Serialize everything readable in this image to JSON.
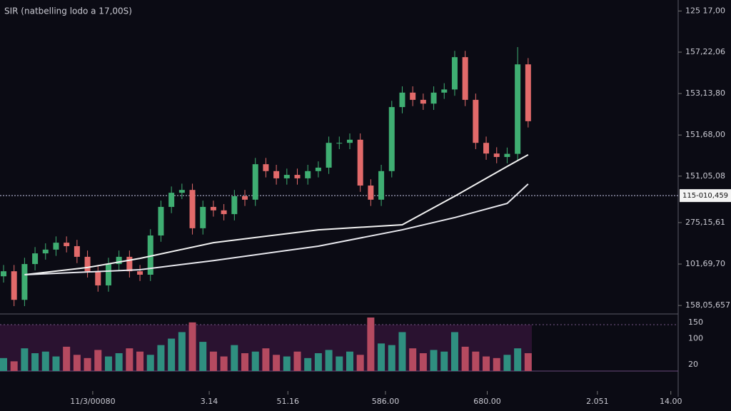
{
  "chart_data": [
    {
      "type": "candlestick",
      "title": "SIR (natbelling lodo a 17,00S)",
      "up_color": "#3fae72",
      "down_color": "#e26a6a",
      "x": [
        0,
        1,
        2,
        3,
        4,
        5,
        6,
        7,
        8,
        9,
        10,
        11,
        12,
        13,
        14,
        15,
        16,
        17,
        18,
        19,
        20,
        21,
        22,
        23,
        24,
        25,
        26,
        27,
        28,
        29,
        30,
        31,
        32,
        33,
        34,
        35,
        36,
        37,
        38,
        39,
        40,
        41,
        42,
        43,
        44,
        45,
        46,
        47,
        48,
        49,
        50
      ],
      "open": [
        12,
        13.6,
        4.5,
        15.9,
        19.3,
        20.5,
        22.7,
        21.6,
        18.2,
        13.6,
        9.1,
        15.9,
        18.2,
        13.6,
        12.5,
        25,
        34.1,
        38.6,
        39.5,
        27.3,
        34.1,
        33,
        31.8,
        37.5,
        36.4,
        47.7,
        45.5,
        43.2,
        44.3,
        43.2,
        45.5,
        46.6,
        54.5,
        54.5,
        55.5,
        40.9,
        36.4,
        45.5,
        65.9,
        70.5,
        68.2,
        67,
        70.5,
        71.5,
        81.8,
        68.2,
        54.5,
        51.1,
        50,
        51,
        79.5
      ],
      "high": [
        15.6,
        15.6,
        17.9,
        21.3,
        22.5,
        24.7,
        24.7,
        23.6,
        20.2,
        15.6,
        17.9,
        20.2,
        20.2,
        15.6,
        27,
        36.1,
        40.6,
        41.5,
        41.5,
        36.1,
        36.1,
        35,
        39.5,
        39.5,
        49.7,
        49.7,
        47.5,
        46.3,
        46.3,
        47.5,
        48.6,
        56.5,
        56.5,
        57.5,
        57.5,
        42.9,
        47.5,
        67.9,
        72.5,
        72.5,
        70.2,
        72.5,
        73.5,
        83.8,
        83.8,
        70.2,
        56.5,
        53.1,
        53,
        85,
        81.5
      ],
      "low": [
        10,
        2.5,
        2.5,
        13.9,
        17.3,
        18.5,
        19.6,
        16.2,
        11.6,
        7.1,
        7.1,
        13.9,
        11.6,
        10.5,
        10.5,
        23,
        32.1,
        36.6,
        25.3,
        25.3,
        31,
        29.8,
        29.8,
        34.4,
        34.4,
        43.5,
        41.2,
        41.2,
        41.2,
        41.2,
        43.5,
        44.6,
        52.5,
        52.5,
        38.9,
        34.4,
        34.4,
        43.5,
        63.9,
        66.2,
        65,
        65,
        68.5,
        69.5,
        66.2,
        52.5,
        49.1,
        48,
        48,
        49,
        59.4
      ],
      "close": [
        13.6,
        4.5,
        15.9,
        19.3,
        20.5,
        22.7,
        21.6,
        18.2,
        13.6,
        9.1,
        15.9,
        18.2,
        13.6,
        12.5,
        25,
        34.1,
        38.6,
        39.5,
        27.3,
        34.1,
        33,
        31.8,
        37.5,
        36.4,
        47.7,
        45.5,
        43.2,
        44.3,
        43.2,
        45.5,
        46.6,
        54.5,
        54.5,
        55.5,
        40.9,
        36.4,
        45.5,
        65.9,
        70.5,
        68.2,
        67,
        70.5,
        71.5,
        81.8,
        68.2,
        54.5,
        51.1,
        50,
        51,
        79.5,
        61.4
      ],
      "lines": [
        {
          "color": "#f2f2f2",
          "x": [
            2,
            8,
            13,
            20,
            30,
            38,
            43,
            48,
            50
          ],
          "values": [
            12.5,
            14.8,
            17.7,
            22.7,
            26.8,
            28.4,
            37.5,
            47,
            50.7
          ]
        },
        {
          "color": "#e8e8ee",
          "x": [
            2,
            13,
            20,
            30,
            38,
            43,
            48,
            50
          ],
          "values": [
            12.5,
            14.1,
            17,
            21.6,
            26.8,
            30.7,
            35.2,
            41.4
          ]
        }
      ],
      "price_line": {
        "value": 37.7,
        "label": "115-010,459"
      },
      "xlim": [
        -0.34,
        64.3
      ],
      "ylim": [
        0,
        100
      ],
      "yticks": [
        {
          "value": 96.5,
          "label": "125 17,00"
        },
        {
          "value": 83.4,
          "label": "157,22,06"
        },
        {
          "value": 70.2,
          "label": "153,13,80"
        },
        {
          "value": 57,
          "label": "151,68,00"
        },
        {
          "value": 43.9,
          "label": "151,05,08"
        },
        {
          "value": 29.1,
          "label": "275,15,61"
        },
        {
          "value": 15.9,
          "label": "101,69,70"
        },
        {
          "value": 2.7,
          "label": "158,05,657"
        }
      ]
    },
    {
      "type": "bar",
      "xlim": [
        -0.34,
        64.3
      ],
      "ylim": [
        0,
        165
      ],
      "yticks": [
        150,
        100,
        20
      ],
      "values": [
        40,
        30,
        70,
        55,
        60,
        45,
        75,
        50,
        40,
        65,
        45,
        55,
        70,
        60,
        50,
        80,
        100,
        120,
        150,
        90,
        60,
        45,
        80,
        55,
        60,
        70,
        50,
        45,
        60,
        40,
        55,
        65,
        45,
        60,
        50,
        165,
        85,
        80,
        120,
        70,
        55,
        65,
        60,
        120,
        75,
        60,
        45,
        40,
        50,
        70,
        55
      ],
      "xticks": [
        {
          "value": 8.5,
          "label": "11/3/00080"
        },
        {
          "value": 19.6,
          "label": "3.14"
        },
        {
          "value": 27.1,
          "label": "51.16"
        },
        {
          "value": 36.4,
          "label": "586.00"
        },
        {
          "value": 46.1,
          "label": "680.00"
        },
        {
          "value": 56.6,
          "label": "2.051"
        },
        {
          "value": 63.6,
          "label": "14.00"
        }
      ]
    }
  ]
}
